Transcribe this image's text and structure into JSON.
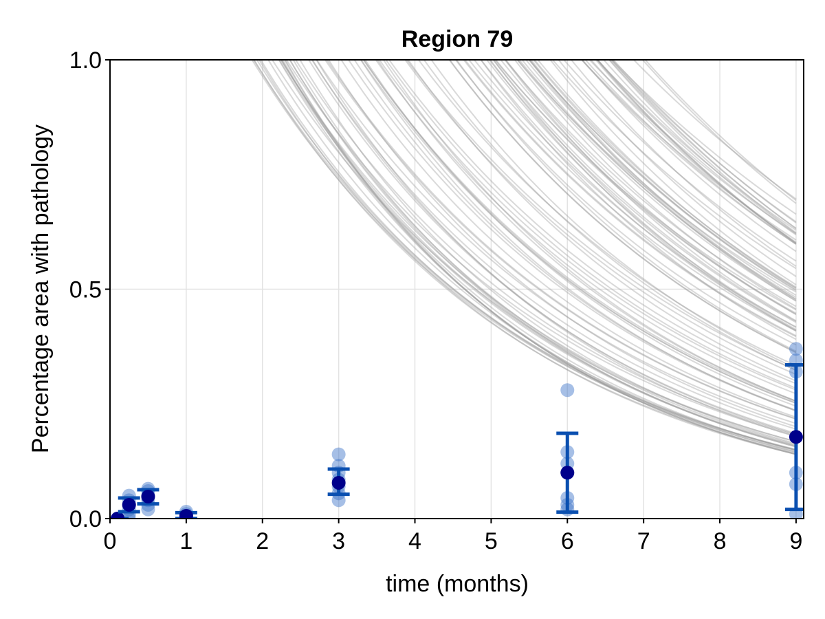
{
  "chart_data": {
    "type": "scatter",
    "title": "Region 79",
    "xlabel": "time (months)",
    "ylabel": "Percentage area with pathology",
    "xlim": [
      0,
      9.1
    ],
    "ylim": [
      0,
      1.0
    ],
    "xticks": [
      0,
      1,
      2,
      3,
      4,
      5,
      6,
      7,
      8,
      9
    ],
    "yticks": [
      0.0,
      0.5,
      1.0
    ],
    "xtick_labels": [
      "0",
      "1",
      "2",
      "3",
      "4",
      "5",
      "6",
      "7",
      "8",
      "9"
    ],
    "ytick_labels": [
      "0.0",
      "0.5",
      "1.0"
    ],
    "grid": true,
    "colors": {
      "observation_points": "#3a72c8",
      "mean_points": "#00008b",
      "error_bars": "#0a4fb0",
      "model_curves": "#9a9a9a"
    },
    "model_curves": {
      "form": "exponential decay",
      "count": 110,
      "value_at_9_months_range": [
        0.14,
        0.7
      ],
      "decay_rate_range_per_month": [
        0.175,
        0.285
      ]
    },
    "observations": [
      {
        "time": 0.1,
        "values": [
          0.0,
          0.0,
          0.0,
          0.0,
          0.0,
          0.0
        ]
      },
      {
        "time": 0.25,
        "values": [
          0.0,
          0.01,
          0.02,
          0.03,
          0.04,
          0.05
        ]
      },
      {
        "time": 0.5,
        "values": [
          0.02,
          0.03,
          0.04,
          0.05,
          0.06,
          0.065
        ]
      },
      {
        "time": 1.0,
        "values": [
          0.0,
          0.003,
          0.006,
          0.01,
          0.015
        ]
      },
      {
        "time": 3.0,
        "values": [
          0.04,
          0.055,
          0.07,
          0.085,
          0.1,
          0.115,
          0.14
        ]
      },
      {
        "time": 6.0,
        "values": [
          0.02,
          0.03,
          0.045,
          0.1,
          0.12,
          0.145,
          0.28
        ]
      },
      {
        "time": 9.0,
        "values": [
          0.01,
          0.075,
          0.1,
          0.32,
          0.345,
          0.37
        ]
      }
    ],
    "summary": [
      {
        "time": 0.1,
        "mean": 0.0,
        "lower": 0.0,
        "upper": 0.0
      },
      {
        "time": 0.25,
        "mean": 0.03,
        "lower": 0.015,
        "upper": 0.045
      },
      {
        "time": 0.5,
        "mean": 0.048,
        "lower": 0.032,
        "upper": 0.063
      },
      {
        "time": 1.0,
        "mean": 0.006,
        "lower": 0.0,
        "upper": 0.013
      },
      {
        "time": 3.0,
        "mean": 0.078,
        "lower": 0.053,
        "upper": 0.108
      },
      {
        "time": 6.0,
        "mean": 0.1,
        "lower": 0.014,
        "upper": 0.186
      },
      {
        "time": 9.0,
        "mean": 0.178,
        "lower": 0.02,
        "upper": 0.335
      }
    ]
  }
}
